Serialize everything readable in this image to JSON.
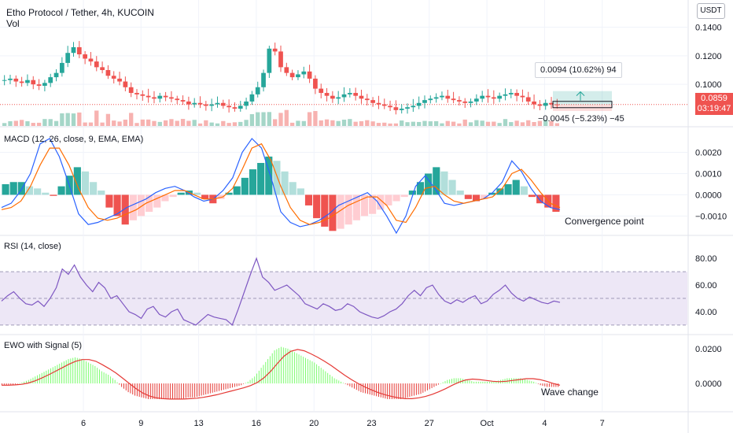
{
  "header": {
    "title": "Etho Protocol / Tether, 4h, KUCOIN",
    "volume_label": "Vol",
    "currency": "USDT",
    "last_price": "0.0859",
    "countdown": "03:19:47"
  },
  "projection": {
    "gain_text": "0.0094 (10.62%) 94",
    "loss_text": "−0.0045 (−5.23%) −45"
  },
  "panes": {
    "macd_title": "MACD (12, 26, close, 9, EMA, EMA)",
    "rsi_title": "RSI (14, close)",
    "ewo_title": "EWO with Signal (5)"
  },
  "annotations": {
    "macd_note": "Convergence point",
    "ewo_note": "Wave change"
  },
  "colors": {
    "up": "#26a69a",
    "down": "#ef5350",
    "macd_line": "#2962ff",
    "signal_line": "#ff6d00",
    "rsi_line": "#7e57c2",
    "rsi_band": "#ede7f6",
    "ewo_up": "#7cfc6e",
    "ewo_down": "#e53935",
    "ewo_signal": "#e53935"
  },
  "chart_data": [
    {
      "type": "candlestick",
      "title": "Etho Protocol / Tether, 4h, KUCOIN",
      "x_tick_labels": [
        "6",
        "9",
        "13",
        "16",
        "20",
        "23",
        "27",
        "Oct",
        "4",
        "7"
      ],
      "y_tick_labels": [
        "0.1400",
        "0.1200",
        "0.1000",
        "0.0859"
      ],
      "ylim": [
        0.072,
        0.148
      ],
      "close_approx": [
        0.103,
        0.104,
        0.102,
        0.101,
        0.103,
        0.1,
        0.099,
        0.101,
        0.105,
        0.108,
        0.115,
        0.122,
        0.126,
        0.121,
        0.118,
        0.116,
        0.112,
        0.11,
        0.106,
        0.104,
        0.102,
        0.098,
        0.094,
        0.093,
        0.092,
        0.091,
        0.09,
        0.092,
        0.091,
        0.09,
        0.089,
        0.088,
        0.086,
        0.087,
        0.086,
        0.085,
        0.086,
        0.087,
        0.085,
        0.084,
        0.083,
        0.085,
        0.088,
        0.093,
        0.098,
        0.108,
        0.125,
        0.123,
        0.112,
        0.108,
        0.105,
        0.107,
        0.109,
        0.104,
        0.097,
        0.094,
        0.092,
        0.09,
        0.091,
        0.093,
        0.094,
        0.092,
        0.09,
        0.089,
        0.087,
        0.086,
        0.085,
        0.084,
        0.082,
        0.083,
        0.084,
        0.085,
        0.087,
        0.089,
        0.09,
        0.091,
        0.092,
        0.09,
        0.089,
        0.088,
        0.087,
        0.088,
        0.09,
        0.092,
        0.091,
        0.09,
        0.092,
        0.093,
        0.094,
        0.092,
        0.091,
        0.088,
        0.086,
        0.085,
        0.087,
        0.086,
        0.0859
      ]
    },
    {
      "type": "bar+line",
      "title": "MACD (12, 26, close, 9, EMA, EMA)",
      "y_tick_labels": [
        "0.0020",
        "0.0010",
        "0.0000",
        "−0.0010"
      ],
      "ylim": [
        -0.0018,
        0.0025
      ],
      "histogram_approx": [
        0.0005,
        0.0006,
        0.0006,
        0.0004,
        0.0003,
        0.0001,
        -5e-05,
        0.0004,
        0.0009,
        0.0013,
        0.0011,
        0.0006,
        0.0002,
        -0.0006,
        -0.001,
        -0.0014,
        -0.0012,
        -0.001,
        -0.0008,
        -0.0006,
        -0.0003,
        -0.0001,
        0.0001,
        0.0002,
        0.0001,
        -0.0002,
        -0.0004,
        -0.0002,
        0.0001,
        0.0004,
        0.0008,
        0.0012,
        0.0015,
        0.0018,
        0.0016,
        0.0011,
        0.0006,
        0.0003,
        -0.0005,
        -0.0011,
        -0.0015,
        -0.0017,
        -0.0016,
        -0.0014,
        -0.0012,
        -0.001,
        -0.0009,
        -0.0007,
        -0.0005,
        -0.0003,
        -0.0001,
        0.0002,
        0.0006,
        0.001,
        0.0013,
        0.0011,
        0.0007,
        0.0002,
        -0.0002,
        -0.0003,
        -0.0002,
        0.0001,
        0.0003,
        0.0005,
        0.0007,
        0.0004,
        -0.0001,
        -0.0004,
        -0.0006,
        -0.0008
      ],
      "macd_line_approx": [
        -0.0006,
        -0.0004,
        0.0002,
        0.001,
        0.0024,
        0.003,
        0.0018,
        0.0005,
        -0.0009,
        -0.0014,
        -0.0013,
        -0.0011,
        -0.0009,
        -0.0006,
        -0.0004,
        -0.0002,
        0.0001,
        0.0003,
        0.0004,
        0.0002,
        -0.0001,
        -0.0003,
        -0.0002,
        0.0002,
        0.0008,
        0.002,
        0.003,
        0.0022,
        0.0008,
        -0.0008,
        -0.0013,
        -0.0015,
        -0.0014,
        -0.0012,
        -0.0009,
        -0.0005,
        -0.0003,
        -0.0001,
        0.0001,
        -0.0003,
        -0.001,
        -0.0018,
        -0.001,
        0.0004,
        0.0009,
        0.0003,
        -0.0004,
        -0.0005,
        -0.0004,
        -0.0003,
        -0.0002,
        0.0001,
        0.0006,
        0.0016,
        0.0011,
        0.0003,
        -0.0003,
        -0.0006,
        -0.0007
      ],
      "signal_line_approx": [
        -0.0007,
        -0.0006,
        -0.0003,
        0.0004,
        0.0014,
        0.0022,
        0.0022,
        0.0014,
        0.0003,
        -0.0006,
        -0.0011,
        -0.0012,
        -0.0011,
        -0.0009,
        -0.0007,
        -0.0004,
        -0.0002,
        0.0,
        0.0002,
        0.0002,
        0.0,
        -0.0002,
        -0.0002,
        -0.0001,
        0.0003,
        0.0012,
        0.0022,
        0.0024,
        0.0016,
        0.0004,
        -0.0006,
        -0.0012,
        -0.0014,
        -0.0013,
        -0.0011,
        -0.0008,
        -0.0005,
        -0.0003,
        -0.0001,
        -0.0001,
        -0.0005,
        -0.0012,
        -0.0013,
        -0.0006,
        0.0003,
        0.0004,
        0.0,
        -0.0003,
        -0.0004,
        -0.0003,
        -0.0002,
        -0.0001,
        0.0003,
        0.001,
        0.0012,
        0.0007,
        0.0001,
        -0.0004,
        -0.0006
      ]
    },
    {
      "type": "line",
      "title": "RSI (14, close)",
      "y_tick_labels": [
        "80.00",
        "60.00",
        "40.00"
      ],
      "ylim": [
        27,
        86
      ],
      "bands": [
        70,
        50,
        30
      ],
      "values_approx": [
        48,
        52,
        55,
        50,
        46,
        45,
        48,
        44,
        50,
        58,
        72,
        68,
        75,
        66,
        60,
        55,
        62,
        58,
        50,
        52,
        46,
        40,
        38,
        35,
        42,
        44,
        38,
        36,
        40,
        42,
        34,
        32,
        30,
        34,
        38,
        36,
        35,
        34,
        30,
        42,
        55,
        68,
        80,
        66,
        62,
        56,
        58,
        60,
        56,
        52,
        46,
        44,
        42,
        46,
        44,
        41,
        42,
        46,
        44,
        40,
        38,
        36,
        35,
        37,
        40,
        42,
        46,
        52,
        56,
        52,
        58,
        60,
        53,
        48,
        46,
        49,
        47,
        50,
        52,
        46,
        48,
        53,
        56,
        60,
        54,
        50,
        48,
        51,
        49,
        47,
        46,
        48,
        47
      ]
    },
    {
      "type": "bar+line",
      "title": "EWO with Signal (5)",
      "y_tick_labels": [
        "0.0200",
        "0.0000"
      ],
      "ylim": [
        -0.014,
        0.024
      ],
      "values_approx": [
        -0.001,
        -0.001,
        -0.0005,
        0.0005,
        0.002,
        0.004,
        0.006,
        0.008,
        0.01,
        0.012,
        0.014,
        0.015,
        0.014,
        0.012,
        0.01,
        0.007,
        0.005,
        0.002,
        -0.002,
        -0.005,
        -0.007,
        -0.008,
        -0.009,
        -0.009,
        -0.009,
        -0.009,
        -0.009,
        -0.009,
        -0.008,
        -0.008,
        -0.007,
        -0.006,
        -0.005,
        -0.004,
        -0.003,
        -0.002,
        -0.001,
        0.001,
        0.004,
        0.009,
        0.014,
        0.019,
        0.021,
        0.02,
        0.018,
        0.016,
        0.014,
        0.012,
        0.009,
        0.006,
        0.003,
        0.001,
        -0.001,
        -0.003,
        -0.005,
        -0.006,
        -0.007,
        -0.008,
        -0.009,
        -0.009,
        -0.009,
        -0.008,
        -0.007,
        -0.006,
        -0.004,
        -0.002,
        0.0,
        0.002,
        0.003,
        0.003,
        0.002,
        0.001,
        0.001,
        0.001,
        0.001,
        0.002,
        0.003,
        0.003,
        0.003,
        0.002,
        0.001,
        -0.001,
        -0.002,
        -0.002
      ]
    }
  ]
}
